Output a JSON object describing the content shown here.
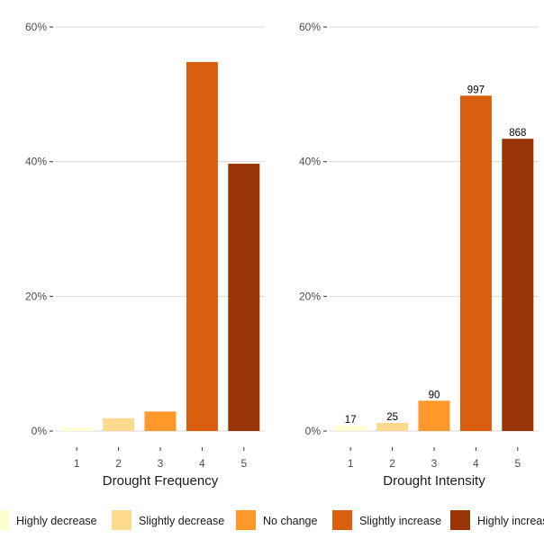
{
  "chart_data": [
    {
      "type": "bar",
      "xlabel": "Drought Frequency",
      "ylabel": "",
      "categories": [
        "1",
        "2",
        "3",
        "4",
        "5"
      ],
      "values": [
        0.5,
        1.9,
        2.9,
        54.8,
        39.7
      ],
      "value_labels": [
        "",
        "",
        "",
        "",
        ""
      ],
      "ylim": [
        0,
        60
      ],
      "yticks": [
        "0%",
        "20%",
        "40%",
        "60%"
      ],
      "grid": "horizontal"
    },
    {
      "type": "bar",
      "xlabel": "Drought Intensity",
      "ylabel": "",
      "categories": [
        "1",
        "2",
        "3",
        "4",
        "5"
      ],
      "values": [
        0.8,
        1.2,
        4.5,
        49.8,
        43.4
      ],
      "value_labels": [
        "17",
        "25",
        "90",
        "997",
        "868"
      ],
      "ylim": [
        0,
        60
      ],
      "yticks": [
        "0%",
        "20%",
        "40%",
        "60%"
      ],
      "grid": "horizontal"
    }
  ],
  "legend": {
    "placement": "bottom",
    "items": [
      {
        "label": "Highly decrease",
        "color": "#FFFFD4"
      },
      {
        "label": "Slightly decrease",
        "color": "#FED98E"
      },
      {
        "label": "No change",
        "color": "#FE9929"
      },
      {
        "label": "Slightly increase",
        "color": "#D95F0E"
      },
      {
        "label": "Highly increase",
        "color": "#993404"
      }
    ]
  }
}
